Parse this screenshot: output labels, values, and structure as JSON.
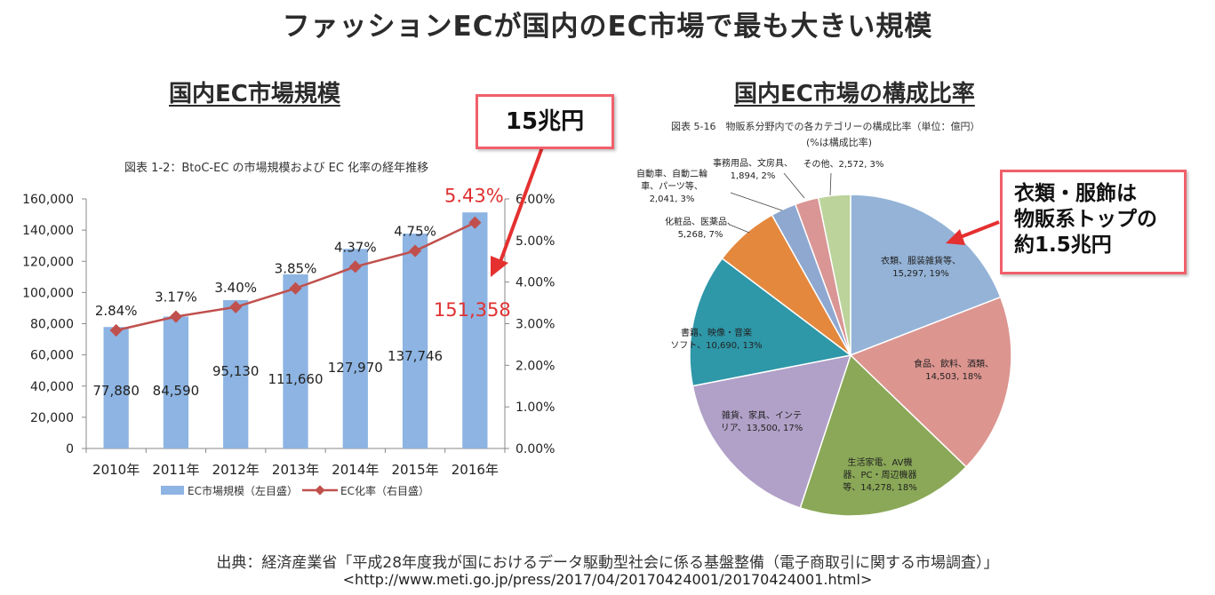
{
  "main_title": "ファッションECが国内のEC市場で最も大きい規模",
  "left": {
    "section_title": "国内EC市場規模",
    "caption": "図表 1-2：BtoC-EC の市場規模および EC 化率の経年推移",
    "callout": "15兆円"
  },
  "right": {
    "section_title": "国内EC市場の構成比率",
    "caption_line1": "図表 5-16　物販系分野内での各カテゴリーの構成比率（単位：億円）",
    "caption_line2": "(%は構成比率)",
    "callout_lines": [
      "衣類・服飾は",
      "物販系トップの",
      "約1.5兆円"
    ]
  },
  "source_line": "出典：経済産業省「平成28年度我が国におけるデータ駆動型社会に係る基盤整備（電子商取引に関する市場調査）」",
  "source_url": "<http://www.meti.go.jp/press/2017/04/20170424001/20170424001.html>",
  "colors": {
    "bar": "#8db4e2",
    "line": "#c0504d",
    "highlight_text": "#e03030",
    "callout_border": "#f0606a",
    "arrow": "#e53030"
  },
  "chart_data": [
    {
      "type": "bar",
      "categories": [
        "2010年",
        "2011年",
        "2012年",
        "2013年",
        "2014年",
        "2015年",
        "2016年"
      ],
      "series": [
        {
          "name": "EC市場規模（左目盛）",
          "kind": "bar",
          "axis": "left",
          "values": [
            77880,
            84590,
            95130,
            111660,
            127970,
            137746,
            151358
          ],
          "labels": [
            "77,880",
            "84,590",
            "95,130",
            "111,660",
            "127,970",
            "137,746",
            "151,358"
          ]
        },
        {
          "name": "EC化率（右目盛）",
          "kind": "line",
          "axis": "right",
          "values": [
            2.84,
            3.17,
            3.4,
            3.85,
            4.37,
            4.75,
            5.43
          ],
          "labels": [
            "2.84%",
            "3.17%",
            "3.40%",
            "3.85%",
            "4.37%",
            "4.75%",
            "5.43%"
          ]
        }
      ],
      "ylim": [
        0,
        160000
      ],
      "yticks": [
        "0",
        "20,000",
        "40,000",
        "60,000",
        "80,000",
        "100,000",
        "120,000",
        "140,000",
        "160,000"
      ],
      "y2lim": [
        0,
        6
      ],
      "y2ticks": [
        "0.00%",
        "1.00%",
        "2.00%",
        "3.00%",
        "4.00%",
        "5.00%",
        "6.00%"
      ],
      "grid": false,
      "legend": "bottom"
    },
    {
      "type": "pie",
      "slices": [
        {
          "label": [
            "衣類、服装雑貨等、",
            "15,297, 19%"
          ],
          "value": 15297,
          "pct": 19,
          "color": "#94b3d7"
        },
        {
          "label": [
            "食品、飲料、酒類、",
            "14,503, 18%"
          ],
          "value": 14503,
          "pct": 18,
          "color": "#dd9590"
        },
        {
          "label": [
            "生活家電、AV機",
            "器、PC・周辺機器",
            "等、14,278, 18%"
          ],
          "value": 14278,
          "pct": 18,
          "color": "#8aa857"
        },
        {
          "label": [
            "雑貨、家具、インテ",
            "リア、13,500, 17%"
          ],
          "value": 13500,
          "pct": 17,
          "color": "#b1a0c7"
        },
        {
          "label": [
            "書籍、映像・音楽",
            "ソフト、10,690, 13%"
          ],
          "value": 10690,
          "pct": 13,
          "color": "#2e97a8"
        },
        {
          "label": [
            "化粧品、医薬品、",
            "5,268, 7%"
          ],
          "value": 5268,
          "pct": 7,
          "color": "#e4883e"
        },
        {
          "label": [
            "自動車、自動二輪",
            "車、パーツ等、",
            "2,041, 3%"
          ],
          "value": 2041,
          "pct": 3,
          "color": "#8ea8d0"
        },
        {
          "label": [
            "事務用品、文房具、",
            "1,894, 2%"
          ],
          "value": 1894,
          "pct": 2,
          "color": "#d99694"
        },
        {
          "label": [
            "その他、2,572, 3%"
          ],
          "value": 2572,
          "pct": 3,
          "color": "#bcd39b"
        }
      ]
    }
  ]
}
